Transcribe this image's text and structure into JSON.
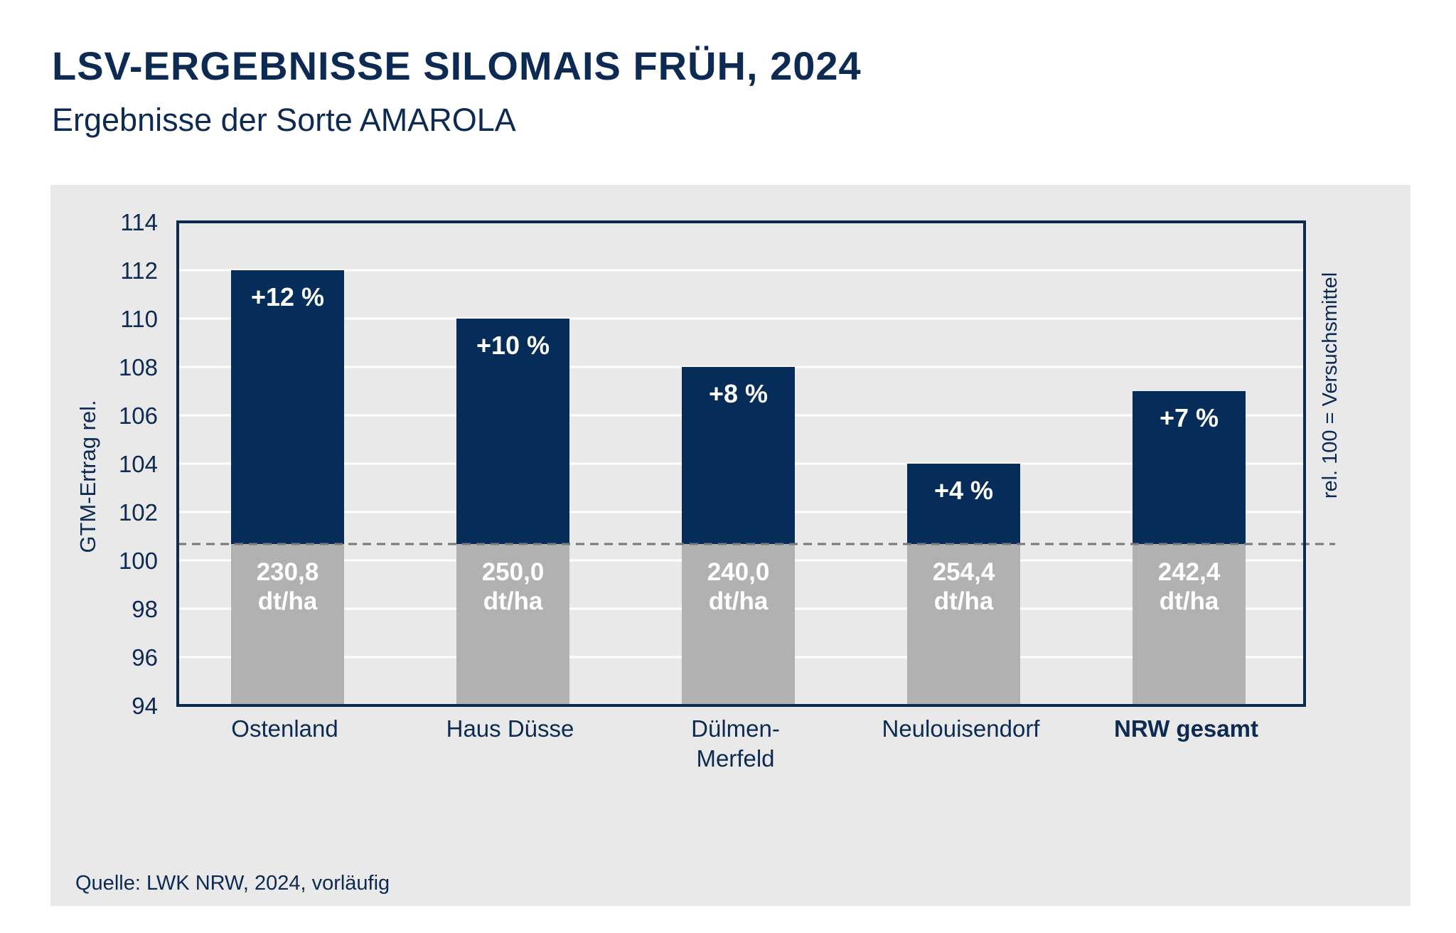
{
  "header": {
    "title": "LSV-ERGEBNISSE SILOMAIS FRÜH, 2024",
    "subtitle": "Ergebnisse der Sorte AMAROLA"
  },
  "footer": {
    "source": "Quelle: LWK NRW, 2024, vorläufig"
  },
  "colors": {
    "bar_top": "#062c59",
    "bar_base": "#b1b1b1",
    "panel_bg": "#e9e9e9",
    "frame": "#0c2a52",
    "reference_line": "#777777"
  },
  "chart_data": {
    "type": "bar",
    "ylabel": "GTM-Ertrag rel.",
    "right_label": "rel. 100 = Versuchsmittel",
    "ylim": [
      94,
      114
    ],
    "yticks": [
      94,
      96,
      98,
      100,
      102,
      104,
      106,
      108,
      110,
      112,
      114
    ],
    "reference_value": 100,
    "grid": true,
    "categories": [
      {
        "lines": [
          "Ostenland"
        ],
        "bold": false
      },
      {
        "lines": [
          "Haus Düsse"
        ],
        "bold": false
      },
      {
        "lines": [
          "Dülmen-",
          "Merfeld"
        ],
        "bold": false
      },
      {
        "lines": [
          "Neulouisendorf"
        ],
        "bold": false
      },
      {
        "lines": [
          "NRW gesamt"
        ],
        "bold": true
      }
    ],
    "values": [
      112,
      110,
      108,
      104,
      107
    ],
    "percent_labels": [
      "+12 %",
      "+10 %",
      "+8 %",
      "+4 %",
      "+7 %"
    ],
    "absolute_values": [
      "230,8",
      "250,0",
      "240,0",
      "254,4",
      "242,4"
    ],
    "absolute_unit": "dt/ha"
  }
}
